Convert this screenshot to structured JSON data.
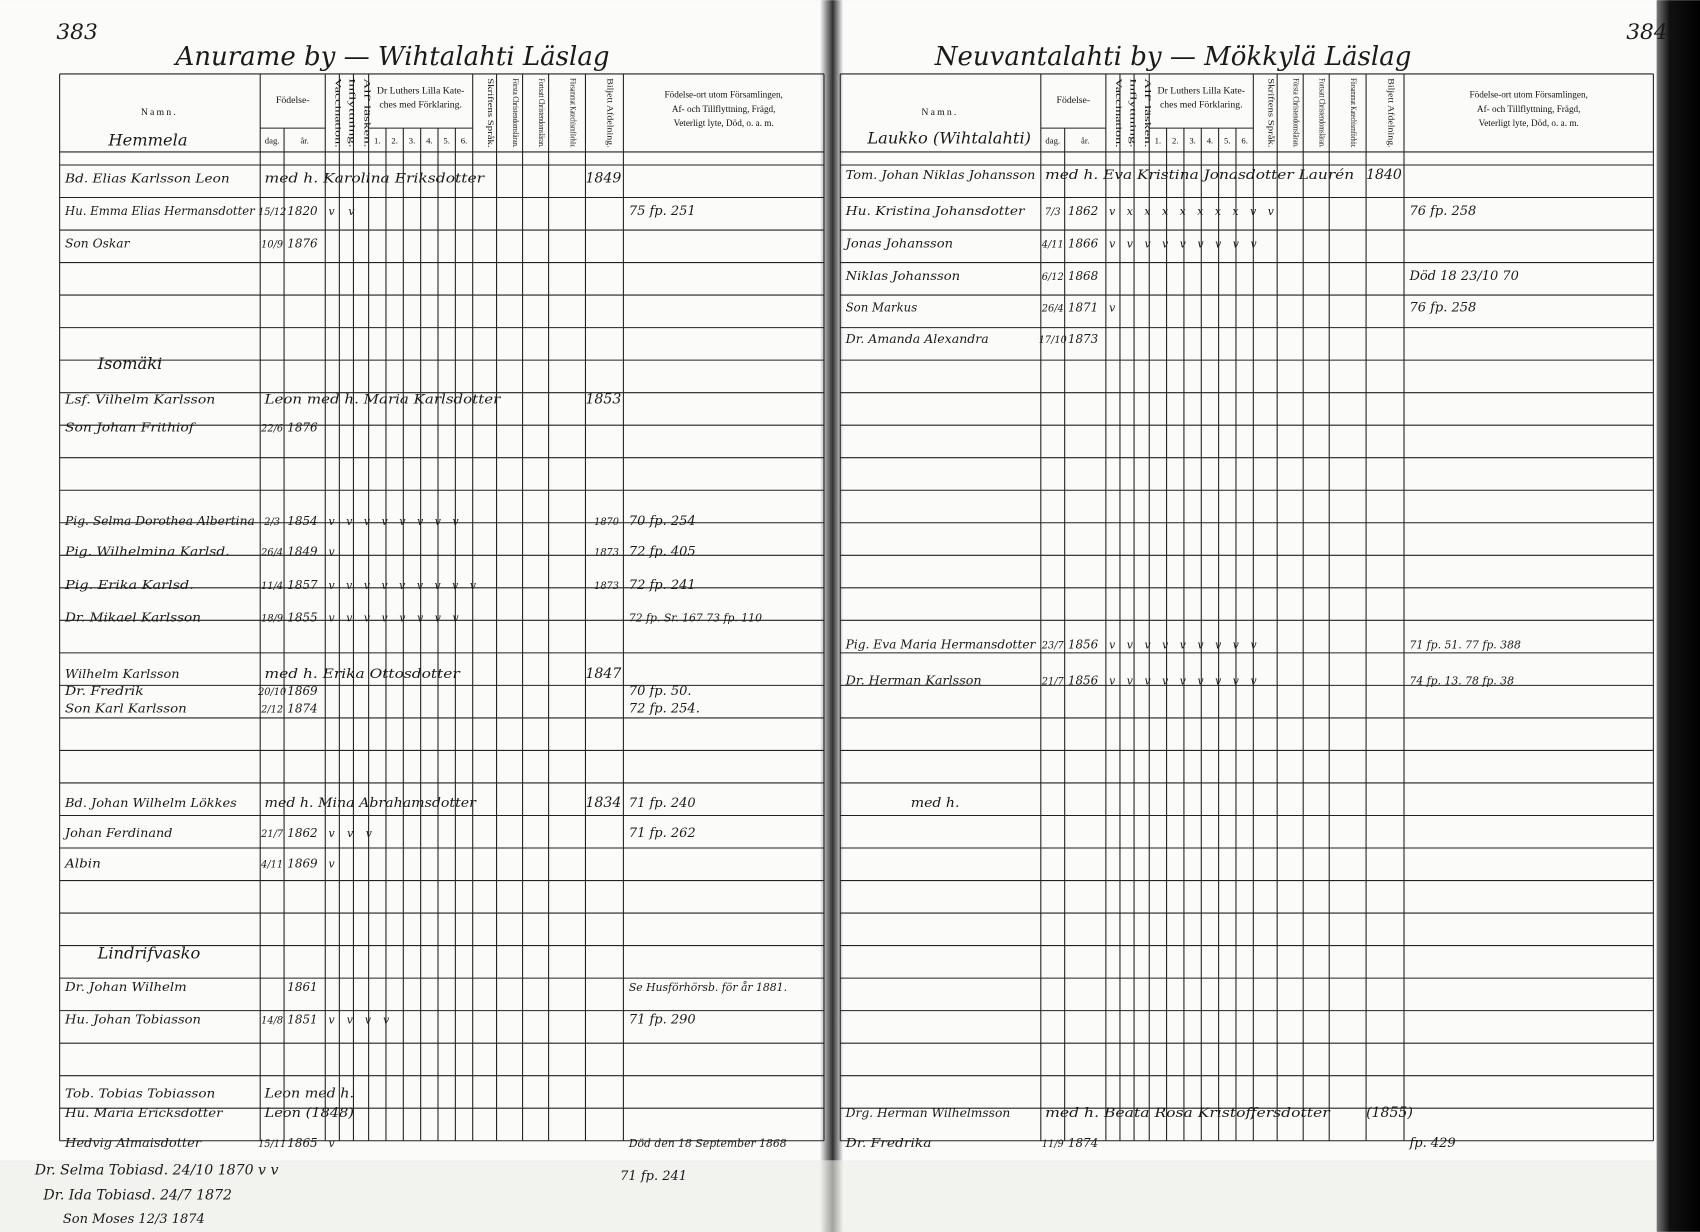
{
  "headers": {
    "name": "Namn.",
    "birth": "Födelse-",
    "day": "dag.",
    "year": "år.",
    "vaccination": "Vaccination.",
    "moved_in": "Inflyttning.",
    "reading": "Alf' läsken.",
    "catechism": [
      "Dr Luthers Lilla Kate-",
      "ches med Förklaring."
    ],
    "catechism_parts": [
      "1.",
      "2.",
      "3.",
      "4.",
      "5.",
      "6."
    ],
    "scripture": "Skriftens Språk.",
    "first_christianity": "Första Christendomsläran.",
    "continued_christianity": "Fortsatt Christendomsläran.",
    "joint_catechism": "Försammat Katechismförhör.",
    "ticket": "Biljett Afdelning.",
    "remarks": [
      "Födelse-ort utom Församlingen,",
      "Af- och Tillflyttning, Frägd,",
      "Veterligt lyte, Död, o. a. m."
    ]
  },
  "left_page": {
    "page_number": "383",
    "heading": "Anurame by — Wihtalahti Läslag",
    "sections": [
      "Hemmela",
      "Isomäki",
      "Lindrifvasko"
    ],
    "entries": [
      {
        "name": "Bd. Elias Karlsson Leon",
        "spouse": "med h. Karolina Eriksdotter",
        "married_year": "1849"
      },
      {
        "name": "Hu. Emma Elias Hermansdotter",
        "day": "15/12",
        "year": "1820",
        "marks": "v v",
        "notes": "75 fp. 251"
      },
      {
        "name": "Son Oskar",
        "day": "10/9",
        "year": "1876"
      },
      {
        "name": "Lsf. Vilhelm Karlsson",
        "spouse": "Leon med h. Maria Karlsdotter",
        "married_year": "1853"
      },
      {
        "name": "Son Johan Frithiof",
        "day": "22/6",
        "year": "1876"
      },
      {
        "name": "Pig. Selma Dorothea Albertina",
        "day": "2/3",
        "year": "1854",
        "marks": "v v v v v v v v",
        "ticket": "1870",
        "notes": "70 fp. 254"
      },
      {
        "name": "Pig. Wilhelmina Karlsd.",
        "day": "26/4",
        "year": "1849",
        "marks": "v",
        "ticket": "1873",
        "notes": "72 fp. 405"
      },
      {
        "name": "Pig. Erika Karlsd.",
        "day": "11/4",
        "year": "1857",
        "marks": "v v v v v v v v v",
        "ticket": "1873",
        "notes": "72 fp. 241"
      },
      {
        "name": "Dr. Mikael Karlsson",
        "day": "18/9",
        "year": "1855",
        "marks": "v v v v v v v v",
        "notes": "72 fp. Sr. 167 73 fp. 110"
      },
      {
        "name": "Wilhelm Karlsson",
        "spouse": "med h. Erika Ottosdotter",
        "married_year": "1847"
      },
      {
        "name": "Dr. Fredrik",
        "day": "20/10",
        "year": "1869",
        "notes": "70 fp. 50."
      },
      {
        "name": "Son Karl Karlsson",
        "day": "2/12",
        "year": "1874",
        "notes": "72 fp. 254."
      },
      {
        "name": "Bd. Johan Wilhelm Lökkes",
        "spouse": "med h. Mina Abrahamsdotter",
        "married_year": "1834",
        "notes": "71 fp. 240"
      },
      {
        "name": "Johan Ferdinand",
        "day": "21/7",
        "year": "1862",
        "marks": "v v v",
        "notes": "71 fp. 262"
      },
      {
        "name": "Albin",
        "day": "4/11",
        "year": "1869",
        "marks": "v"
      },
      {
        "name": "Dr. Johan Wilhelm",
        "year": "1861",
        "notes": "Se Husförhörsb. för år 1881."
      },
      {
        "name": "Hu. Johan Tobiasson",
        "day": "14/8",
        "year": "1851",
        "marks": "v v v v",
        "notes": "71 fp. 290"
      },
      {
        "name": "Tob. Tobias Tobiasson",
        "spouse": "Leon med h."
      },
      {
        "name": "Hu. Maria Ericksdotter",
        "spouse": "Leon (1848)"
      },
      {
        "name": "Hedvig Almaisdotter",
        "day": "15/11",
        "year": "1865",
        "marks": "v",
        "notes": "Död den 18 September 1868"
      }
    ],
    "margin_notes": [
      "71 fp. 241",
      "Dr. Selma Tobiasd.  24/10 1870 v v",
      "Dr. Ida Tobiasd.  24/7 1872",
      "Son Moses  12/3 1874"
    ]
  },
  "right_page": {
    "page_number": "384",
    "heading": "Neuvantalahti by — Mökkylä Läslag",
    "sections": [
      "Laukko (Wihtalahti)"
    ],
    "entries": [
      {
        "name": "Tom. Johan Niklas Johansson",
        "spouse": "med h. Eva Kristina Jonasdotter Laurén",
        "married_year": "1840"
      },
      {
        "name": "Hu. Kristina Johansdotter",
        "day": "7/3",
        "year": "1862",
        "marks": "v x x x x x x x v v",
        "notes": "76 fp. 258"
      },
      {
        "name": "Jonas Johansson",
        "day": "4/11",
        "year": "1866",
        "marks": "v v v v v v v v v"
      },
      {
        "name": "Niklas Johansson",
        "day": "6/12",
        "year": "1868",
        "notes": "Död 18 23/10 70"
      },
      {
        "name": "Son Markus",
        "day": "26/4",
        "year": "1871",
        "marks": "v",
        "notes": "76 fp. 258"
      },
      {
        "name": "Dr. Amanda Alexandra",
        "day": "17/10",
        "year": "1873"
      },
      {
        "name": "Pig. Eva Maria Hermansdotter",
        "day": "23/7",
        "year": "1856",
        "marks": "v v v v v v v v v",
        "notes": "71 fp. 51. 77 fp. 388"
      },
      {
        "name": "Dr. Herman Karlsson",
        "day": "21/7",
        "year": "1856",
        "marks": "v v v v v v v v v",
        "notes": "74 fp. 13. 78 fp. 38"
      },
      {
        "spouse": "med h."
      },
      {
        "name": "Drg. Herman Wilhelmsson",
        "spouse": "med h. Beata Rosa Kristoffersdotter",
        "married_year": "(1855)"
      },
      {
        "name": "Dr. Fredrika",
        "day": "11/9",
        "year": "1874",
        "notes": "fp. 429"
      }
    ]
  }
}
